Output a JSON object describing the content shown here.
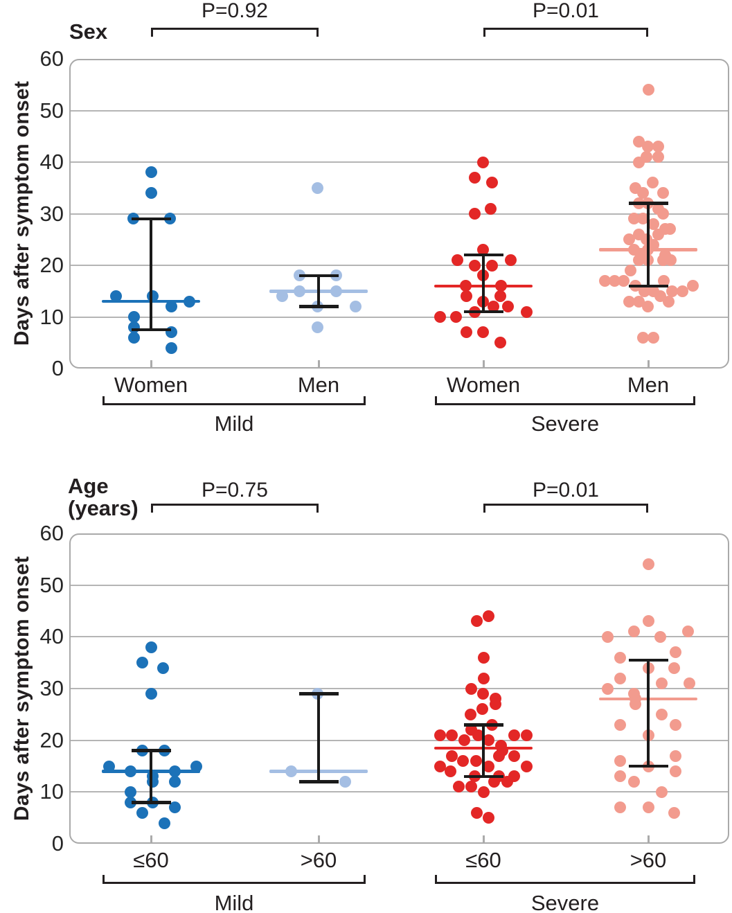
{
  "chart_data": {
    "type": "scatter",
    "description": "Dot plot of days after symptom onset by sex and by age group, split into mild and severe clusters, with median lines and interquartile-range whiskers",
    "ylabel": "Days after symptom onset",
    "ylim": [
      0,
      60
    ],
    "yticks": [
      0,
      10,
      20,
      30,
      40,
      50,
      60
    ],
    "grid": true,
    "legend": "none",
    "colors": {
      "dark_blue": "#1C72B8",
      "light_blue": "#A4BEE3",
      "red": "#E32726",
      "salmon": "#F29B8E",
      "grid": "#B5B5B5",
      "border": "#A9A9A9",
      "black": "#1A1A1A",
      "text": "#231F20"
    },
    "panels": [
      {
        "panel_title": "Sex",
        "comparisons": [
          {
            "label": "P=0.92",
            "groups": [
              0,
              1
            ]
          },
          {
            "label": "P=0.01",
            "groups": [
              2,
              3
            ]
          }
        ],
        "clusters": [
          {
            "label": "Mild",
            "groups": [
              0,
              1
            ]
          },
          {
            "label": "Severe",
            "groups": [
              2,
              3
            ]
          }
        ],
        "groups": [
          {
            "label": "Women",
            "cluster": "Mild",
            "color": "dark_blue",
            "median": 13,
            "whisker_low": 7.5,
            "whisker_high": 29,
            "points": [
              [
                38,
                0
              ],
              [
                34,
                0
              ],
              [
                29,
                -26
              ],
              [
                29,
                27
              ],
              [
                14,
                -51
              ],
              [
                14,
                2
              ],
              [
                13,
                55
              ],
              [
                12,
                29
              ],
              [
                10,
                -25
              ],
              [
                8,
                -25
              ],
              [
                7,
                29
              ],
              [
                6,
                -25
              ],
              [
                4,
                29
              ]
            ]
          },
          {
            "label": "Men",
            "cluster": "Mild",
            "color": "light_blue",
            "median": 15,
            "whisker_low": 12,
            "whisker_high": 18,
            "points": [
              [
                35,
                -2
              ],
              [
                18,
                -28
              ],
              [
                18,
                25
              ],
              [
                15,
                -28
              ],
              [
                15,
                25
              ],
              [
                14,
                -53
              ],
              [
                12,
                -2
              ],
              [
                12,
                53
              ],
              [
                8,
                -2
              ]
            ]
          },
          {
            "label": "Women",
            "cluster": "Severe",
            "color": "red",
            "median": 16,
            "whisker_low": 11,
            "whisker_high": 22,
            "points": [
              [
                40,
                -1
              ],
              [
                37,
                -13
              ],
              [
                36,
                12
              ],
              [
                31,
                10
              ],
              [
                30,
                -13
              ],
              [
                23,
                -1
              ],
              [
                21,
                -38
              ],
              [
                21,
                39
              ],
              [
                20,
                -13
              ],
              [
                20,
                12
              ],
              [
                18,
                -1
              ],
              [
                16,
                -26
              ],
              [
                16,
                25
              ],
              [
                14,
                -25
              ],
              [
                14,
                24
              ],
              [
                13,
                -1
              ],
              [
                12,
                14
              ],
              [
                12,
                35
              ],
              [
                11,
                -13
              ],
              [
                11,
                62
              ],
              [
                10,
                -63
              ],
              [
                10,
                -40
              ],
              [
                7,
                -25
              ],
              [
                7,
                -1
              ],
              [
                5,
                24
              ]
            ]
          },
          {
            "label": "Men",
            "cluster": "Severe",
            "color": "salmon",
            "median": 23,
            "whisker_low": 16,
            "whisker_high": 32,
            "points": [
              [
                54,
                0
              ],
              [
                44,
                -14
              ],
              [
                43,
                -1
              ],
              [
                43,
                14
              ],
              [
                41,
                -3
              ],
              [
                41,
                14
              ],
              [
                40,
                -14
              ],
              [
                36,
                6
              ],
              [
                35,
                -19
              ],
              [
                34,
                -8
              ],
              [
                34,
                21
              ],
              [
                32,
                -14
              ],
              [
                32,
                -1
              ],
              [
                31,
                14
              ],
              [
                30,
                21
              ],
              [
                29,
                -21
              ],
              [
                29,
                -8
              ],
              [
                28,
                7
              ],
              [
                27,
                24
              ],
              [
                27,
                31
              ],
              [
                26,
                -14
              ],
              [
                26,
                14
              ],
              [
                25,
                -28
              ],
              [
                25,
                -3
              ],
              [
                24,
                7
              ],
              [
                23,
                -21
              ],
              [
                23,
                -1
              ],
              [
                22,
                -11
              ],
              [
                22,
                24
              ],
              [
                21,
                -14
              ],
              [
                21,
                -1
              ],
              [
                21,
                21
              ],
              [
                21,
                32
              ],
              [
                19,
                -26
              ],
              [
                17,
                -63
              ],
              [
                17,
                -49
              ],
              [
                17,
                -36
              ],
              [
                17,
                22
              ],
              [
                16,
                -19
              ],
              [
                16,
                64
              ],
              [
                15,
                -6
              ],
              [
                15,
                7
              ],
              [
                15,
                34
              ],
              [
                15,
                49
              ],
              [
                14,
                17
              ],
              [
                13,
                -28
              ],
              [
                13,
                -14
              ],
              [
                13,
                29
              ],
              [
                12,
                -1
              ],
              [
                6,
                -8
              ],
              [
                6,
                7
              ]
            ]
          }
        ]
      },
      {
        "panel_title": "Age\n(years)",
        "comparisons": [
          {
            "label": "P=0.75",
            "groups": [
              0,
              1
            ]
          },
          {
            "label": "P=0.01",
            "groups": [
              2,
              3
            ]
          }
        ],
        "clusters": [
          {
            "label": "Mild",
            "groups": [
              0,
              1
            ]
          },
          {
            "label": "Severe",
            "groups": [
              2,
              3
            ]
          }
        ],
        "groups": [
          {
            "label": "≤60",
            "cluster": "Mild",
            "color": "dark_blue",
            "median": 14,
            "whisker_low": 8,
            "whisker_high": 18,
            "points": [
              [
                38,
                0
              ],
              [
                35,
                -13
              ],
              [
                34,
                17
              ],
              [
                29,
                0
              ],
              [
                18,
                -13
              ],
              [
                18,
                19
              ],
              [
                15,
                -61
              ],
              [
                15,
                65
              ],
              [
                14,
                -30
              ],
              [
                14,
                34
              ],
              [
                13,
                2
              ],
              [
                12,
                2
              ],
              [
                12,
                34
              ],
              [
                10,
                -30
              ],
              [
                8,
                -30
              ],
              [
                8,
                2
              ],
              [
                7,
                34
              ],
              [
                6,
                -13
              ],
              [
                4,
                19
              ]
            ]
          },
          {
            "label": ">60",
            "cluster": "Mild",
            "color": "light_blue",
            "median": 14,
            "whisker_low": 12,
            "whisker_high": 29,
            "points": [
              [
                29,
                -2
              ],
              [
                14,
                -40
              ],
              [
                12,
                38
              ]
            ]
          },
          {
            "label": "≤60",
            "cluster": "Severe",
            "color": "red",
            "median": 18.5,
            "whisker_low": 13,
            "whisker_high": 23,
            "points": [
              [
                44,
                7
              ],
              [
                43,
                -10
              ],
              [
                36,
                0
              ],
              [
                32,
                0
              ],
              [
                30,
                -18
              ],
              [
                29,
                -1
              ],
              [
                28,
                17
              ],
              [
                27,
                17
              ],
              [
                26,
                -2
              ],
              [
                25,
                -19
              ],
              [
                23,
                12
              ],
              [
                22,
                -18
              ],
              [
                21,
                -63
              ],
              [
                21,
                -46
              ],
              [
                21,
                -8
              ],
              [
                21,
                44
              ],
              [
                21,
                62
              ],
              [
                20,
                -28
              ],
              [
                20,
                7
              ],
              [
                19,
                25
              ],
              [
                18,
                27
              ],
              [
                17,
                -46
              ],
              [
                17,
                22
              ],
              [
                17,
                44
              ],
              [
                16,
                -30
              ],
              [
                16,
                -11
              ],
              [
                15,
                -63
              ],
              [
                15,
                7
              ],
              [
                15,
                62
              ],
              [
                14,
                -48
              ],
              [
                13,
                -13
              ],
              [
                13,
                22
              ],
              [
                13,
                44
              ],
              [
                12,
                15
              ],
              [
                12,
                34
              ],
              [
                11,
                -36
              ],
              [
                11,
                -18
              ],
              [
                10,
                0
              ],
              [
                6,
                -10
              ],
              [
                5,
                7
              ]
            ]
          },
          {
            "label": ">60",
            "cluster": "Severe",
            "color": "salmon",
            "median": 28,
            "whisker_low": 15,
            "whisker_high": 35.5,
            "points": [
              [
                54,
                0
              ],
              [
                43,
                0
              ],
              [
                41,
                -21
              ],
              [
                41,
                57
              ],
              [
                40,
                -59
              ],
              [
                40,
                17
              ],
              [
                37,
                39
              ],
              [
                36,
                -41
              ],
              [
                34,
                0
              ],
              [
                34,
                37
              ],
              [
                32,
                -41
              ],
              [
                31,
                19
              ],
              [
                31,
                59
              ],
              [
                30,
                -59
              ],
              [
                29,
                -21
              ],
              [
                28,
                -19
              ],
              [
                27,
                -19
              ],
              [
                25,
                19
              ],
              [
                23,
                -41
              ],
              [
                23,
                39
              ],
              [
                21,
                0
              ],
              [
                17,
                39
              ],
              [
                16,
                -41
              ],
              [
                15,
                0
              ],
              [
                14,
                39
              ],
              [
                13,
                -41
              ],
              [
                12,
                -21
              ],
              [
                10,
                19
              ],
              [
                7,
                -41
              ],
              [
                7,
                0
              ],
              [
                6,
                37
              ]
            ]
          }
        ]
      }
    ]
  }
}
